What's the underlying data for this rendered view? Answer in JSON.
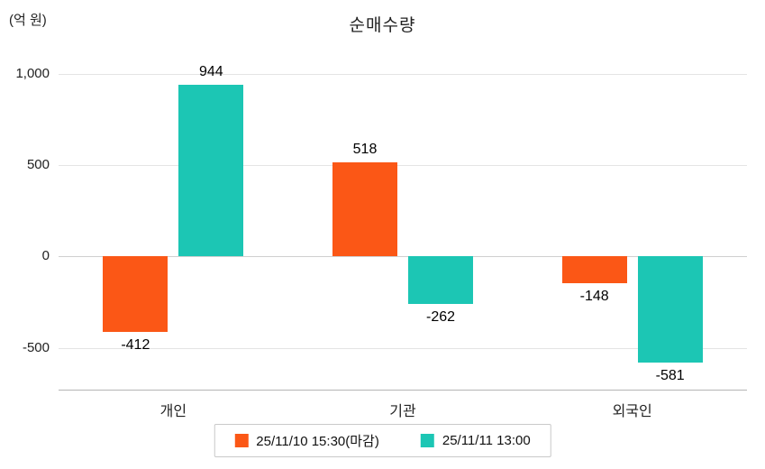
{
  "title": "순매수량",
  "y_axis_unit": "(억 원)",
  "chart_data": {
    "type": "bar",
    "title": "순매수량",
    "ylabel": "(억 원)",
    "categories": [
      "개인",
      "기관",
      "외국인"
    ],
    "series": [
      {
        "name": "25/11/10 15:30(마감)",
        "color": "#fb5716",
        "values": [
          -412,
          518,
          -148
        ]
      },
      {
        "name": "25/11/11 13:00",
        "color": "#1cc6b4",
        "values": [
          944,
          -262,
          -581
        ]
      }
    ],
    "value_labels": [
      [
        "-412",
        "518",
        "-148"
      ],
      [
        "944",
        "-262",
        "-581"
      ]
    ],
    "ylim": [
      -730,
      1110
    ],
    "yticks": [
      {
        "value": 1000,
        "label": "1,000"
      },
      {
        "value": 500,
        "label": "500"
      },
      {
        "value": 0,
        "label": "0"
      },
      {
        "value": -500,
        "label": "-500"
      }
    ],
    "grid": true,
    "legend_position": "bottom"
  }
}
